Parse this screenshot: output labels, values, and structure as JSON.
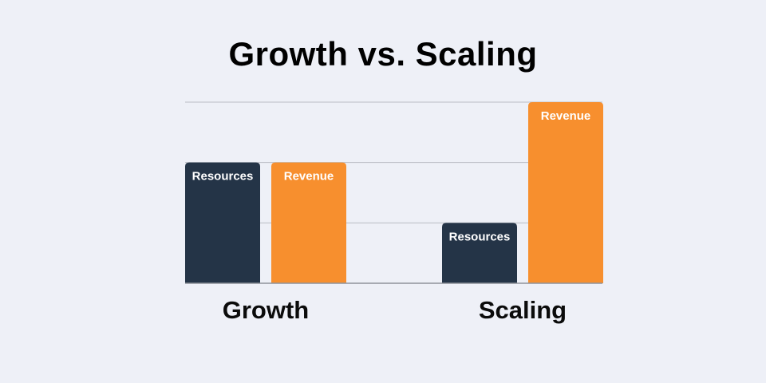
{
  "chart_data": {
    "type": "bar",
    "title": "Growth vs. Scaling",
    "xlabel": "",
    "ylabel": "",
    "categories": [
      "Growth",
      "Scaling"
    ],
    "series": [
      {
        "name": "Resources",
        "values": [
          2,
          1
        ],
        "color": "#243447"
      },
      {
        "name": "Revenue",
        "values": [
          2,
          3
        ],
        "color": "#f78f2e"
      }
    ],
    "ylim": [
      0,
      3
    ],
    "grid": true,
    "legend": "none"
  }
}
